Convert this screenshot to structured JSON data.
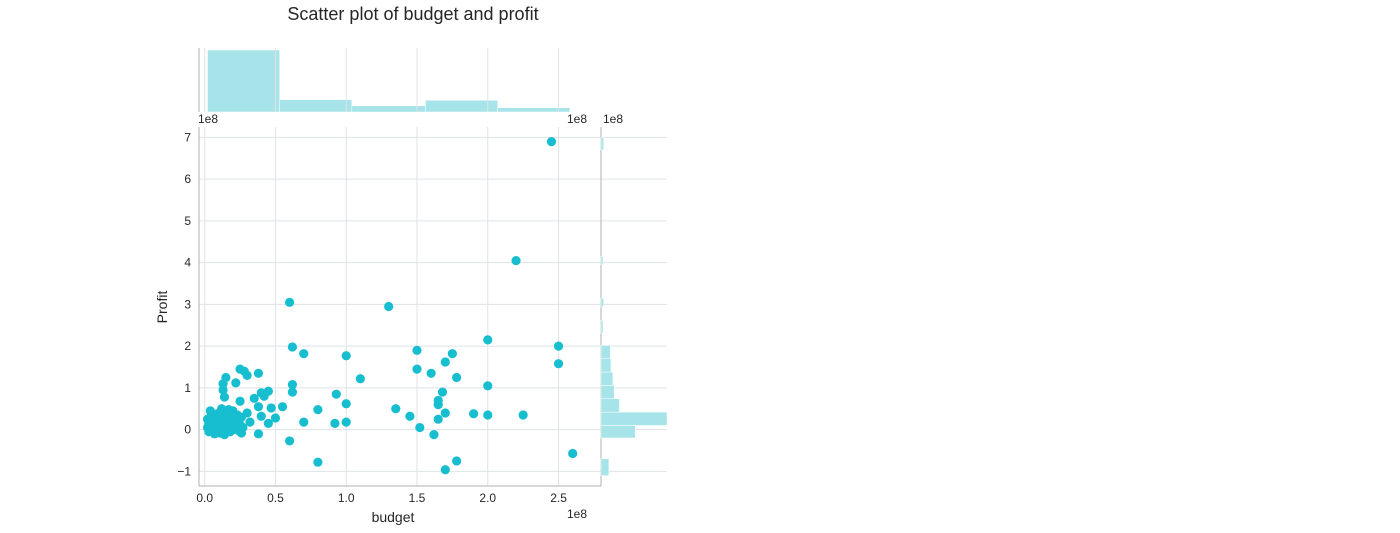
{
  "chart_data": {
    "type": "scatter",
    "title": "Scatter plot of budget and profit",
    "xlabel": "budget",
    "ylabel": "Profit",
    "x_offset_text": "1e8",
    "y_offset_text": "1e8",
    "xlim": [
      -0.04,
      2.8
    ],
    "ylim": [
      -1.35,
      7.25
    ],
    "x_ticks": [
      0.0,
      0.5,
      1.0,
      1.5,
      2.0,
      2.5
    ],
    "x_tick_labels": [
      "0.0",
      "0.5",
      "1.0",
      "1.5",
      "2.0",
      "2.5"
    ],
    "y_ticks": [
      -1,
      0,
      1,
      2,
      3,
      4,
      5,
      6,
      7
    ],
    "y_tick_labels": [
      "−1",
      "0",
      "1",
      "2",
      "3",
      "4",
      "5",
      "6",
      "7"
    ],
    "grid": true,
    "colors": {
      "points": "#17becf",
      "hist": "#a6e4e9"
    },
    "series": [
      {
        "points": [
          [
            2.45,
            6.9
          ],
          [
            2.2,
            4.05
          ],
          [
            0.6,
            3.05
          ],
          [
            1.3,
            2.95
          ],
          [
            2.0,
            2.15
          ],
          [
            2.5,
            2.0
          ],
          [
            0.62,
            1.98
          ],
          [
            1.5,
            1.9
          ],
          [
            0.7,
            1.82
          ],
          [
            1.75,
            1.82
          ],
          [
            1.0,
            1.77
          ],
          [
            1.7,
            1.62
          ],
          [
            2.5,
            1.58
          ],
          [
            1.5,
            1.45
          ],
          [
            1.6,
            1.35
          ],
          [
            0.25,
            1.45
          ],
          [
            0.28,
            1.4
          ],
          [
            0.3,
            1.3
          ],
          [
            0.38,
            1.35
          ],
          [
            1.1,
            1.22
          ],
          [
            1.78,
            1.25
          ],
          [
            0.15,
            1.25
          ],
          [
            0.13,
            1.1
          ],
          [
            0.22,
            1.12
          ],
          [
            0.62,
            1.08
          ],
          [
            2.0,
            1.05
          ],
          [
            1.68,
            0.9
          ],
          [
            0.13,
            0.95
          ],
          [
            0.4,
            0.88
          ],
          [
            0.45,
            0.92
          ],
          [
            0.62,
            0.9
          ],
          [
            0.93,
            0.85
          ],
          [
            0.35,
            0.75
          ],
          [
            0.42,
            0.8
          ],
          [
            0.14,
            0.78
          ],
          [
            1.65,
            0.7
          ],
          [
            1.0,
            0.62
          ],
          [
            1.65,
            0.6
          ],
          [
            0.38,
            0.55
          ],
          [
            0.47,
            0.52
          ],
          [
            0.55,
            0.55
          ],
          [
            0.25,
            0.68
          ],
          [
            0.8,
            0.48
          ],
          [
            1.35,
            0.5
          ],
          [
            1.7,
            0.4
          ],
          [
            1.9,
            0.38
          ],
          [
            2.0,
            0.35
          ],
          [
            2.25,
            0.35
          ],
          [
            0.3,
            0.4
          ],
          [
            0.4,
            0.32
          ],
          [
            1.45,
            0.32
          ],
          [
            1.65,
            0.25
          ],
          [
            0.5,
            0.28
          ],
          [
            0.32,
            0.18
          ],
          [
            0.7,
            0.18
          ],
          [
            0.92,
            0.15
          ],
          [
            1.0,
            0.18
          ],
          [
            0.45,
            0.15
          ],
          [
            1.52,
            0.05
          ],
          [
            0.27,
            0.05
          ],
          [
            0.2,
            0.0
          ],
          [
            1.62,
            -0.12
          ],
          [
            0.38,
            -0.1
          ],
          [
            0.6,
            -0.27
          ],
          [
            0.26,
            -0.08
          ],
          [
            0.8,
            -0.78
          ],
          [
            1.78,
            -0.75
          ],
          [
            1.7,
            -0.96
          ],
          [
            2.6,
            -0.57
          ],
          [
            0.02,
            0.05
          ],
          [
            0.03,
            0.15
          ],
          [
            0.03,
            -0.05
          ],
          [
            0.04,
            0.3
          ],
          [
            0.05,
            0.08
          ],
          [
            0.05,
            0.22
          ],
          [
            0.06,
            -0.02
          ],
          [
            0.06,
            0.35
          ],
          [
            0.07,
            0.12
          ],
          [
            0.08,
            0.25
          ],
          [
            0.08,
            0.0
          ],
          [
            0.09,
            0.38
          ],
          [
            0.09,
            0.15
          ],
          [
            0.1,
            0.05
          ],
          [
            0.1,
            0.28
          ],
          [
            0.11,
            -0.08
          ],
          [
            0.11,
            0.4
          ],
          [
            0.12,
            0.18
          ],
          [
            0.12,
            0.02
          ],
          [
            0.13,
            0.32
          ],
          [
            0.14,
            0.1
          ],
          [
            0.14,
            -0.12
          ],
          [
            0.15,
            0.22
          ],
          [
            0.15,
            0.42
          ],
          [
            0.16,
            0.05
          ],
          [
            0.16,
            0.3
          ],
          [
            0.17,
            0.15
          ],
          [
            0.18,
            -0.05
          ],
          [
            0.18,
            0.38
          ],
          [
            0.19,
            0.1
          ],
          [
            0.2,
            0.25
          ],
          [
            0.2,
            0.45
          ],
          [
            0.21,
            0.05
          ],
          [
            0.22,
            0.18
          ],
          [
            0.23,
            0.35
          ],
          [
            0.24,
            -0.02
          ],
          [
            0.25,
            0.12
          ],
          [
            0.26,
            0.3
          ],
          [
            0.04,
            0.45
          ],
          [
            0.07,
            -0.1
          ],
          [
            0.12,
            0.5
          ],
          [
            0.17,
            0.48
          ],
          [
            0.02,
            0.25
          ],
          [
            0.09,
            -0.02
          ],
          [
            0.13,
            0.0
          ]
        ]
      }
    ],
    "x_marginal_hist": {
      "bin_edges": [
        0.02,
        0.53,
        1.04,
        1.56,
        2.07,
        2.58
      ],
      "heights": [
        1.0,
        0.2,
        0.1,
        0.19,
        0.07
      ]
    },
    "y_marginal_hist": {
      "bins": [
        {
          "from": -1.1,
          "to": -0.7,
          "height": 0.12
        },
        {
          "from": -0.2,
          "to": 0.1,
          "height": 0.52
        },
        {
          "from": 0.1,
          "to": 0.42,
          "height": 1.0
        },
        {
          "from": 0.42,
          "to": 0.74,
          "height": 0.28
        },
        {
          "from": 0.74,
          "to": 1.06,
          "height": 0.2
        },
        {
          "from": 1.06,
          "to": 1.38,
          "height": 0.18
        },
        {
          "from": 1.38,
          "to": 1.7,
          "height": 0.15
        },
        {
          "from": 1.7,
          "to": 2.02,
          "height": 0.14
        },
        {
          "from": 2.3,
          "to": 2.62,
          "height": 0.03
        },
        {
          "from": 2.95,
          "to": 3.15,
          "height": 0.04
        },
        {
          "from": 3.95,
          "to": 4.15,
          "height": 0.03
        },
        {
          "from": 6.7,
          "to": 7.0,
          "height": 0.04
        }
      ]
    }
  }
}
